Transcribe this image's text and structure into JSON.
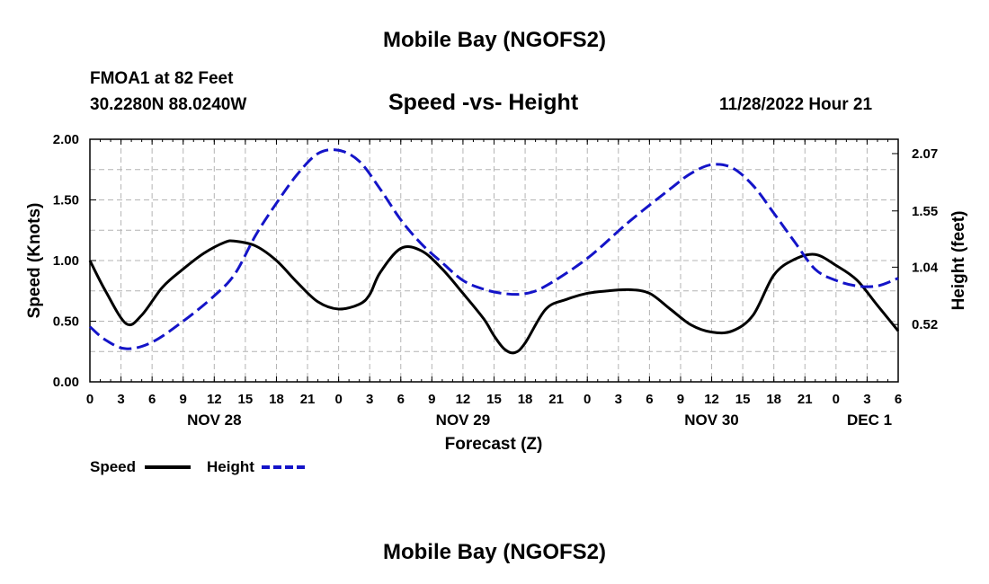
{
  "page_title": "Mobile Bay (NGOFS2)",
  "footer_title": "Mobile Bay (NGOFS2)",
  "station": {
    "name_line": "FMOA1 at 82 Feet",
    "coords_line": "30.2280N  88.0240W"
  },
  "forecast_time": "11/28/2022 Hour 21",
  "legend": {
    "speed_label": "Speed",
    "height_label": "Height"
  },
  "colors": {
    "speed": "#000000",
    "height": "#1414c8",
    "grid": "#b4b4b4"
  },
  "chart_data": {
    "type": "line",
    "title": "Speed -vs- Height",
    "xlabel": "Forecast (Z)",
    "ylabel_left": "Speed (Knots)",
    "ylabel_right": "Height (feet)",
    "xlim_hours": [
      0,
      78
    ],
    "ylim_left": [
      0,
      2.0
    ],
    "ylim_right": [
      0.0,
      2.2
    ],
    "left_ticks": [
      "0.00",
      "0.50",
      "1.00",
      "1.50",
      "2.00"
    ],
    "left_tick_values": [
      0,
      0.5,
      1.0,
      1.5,
      2.0
    ],
    "right_ticks": [
      "0.52",
      "1.04",
      "1.55",
      "2.07"
    ],
    "right_tick_values": [
      0.52,
      1.04,
      1.55,
      2.07
    ],
    "x_tick_labels": [
      "0",
      "3",
      "6",
      "9",
      "12",
      "15",
      "18",
      "21",
      "0",
      "3",
      "6",
      "9",
      "12",
      "15",
      "18",
      "21",
      "0",
      "3",
      "6",
      "9",
      "12",
      "15",
      "18",
      "21",
      "0",
      "3",
      "6"
    ],
    "date_labels": [
      {
        "label": "NOV 28",
        "hour": 12
      },
      {
        "label": "NOV 29",
        "hour": 36
      },
      {
        "label": "NOV 30",
        "hour": 60
      },
      {
        "label": "DEC 1",
        "hour": 78
      }
    ],
    "grid": true,
    "series": [
      {
        "name": "Speed",
        "axis": "left",
        "x": [
          0,
          1.5,
          3.5,
          5,
          7,
          9,
          11,
          13,
          14,
          16,
          18,
          20,
          22,
          24,
          26,
          27,
          28,
          30,
          32,
          34,
          36,
          38,
          39,
          40,
          41,
          42,
          44,
          46,
          48,
          50,
          52,
          54,
          56,
          58,
          60,
          62,
          64,
          66,
          68,
          70,
          72,
          74,
          76,
          78
        ],
        "values": [
          1.0,
          0.75,
          0.48,
          0.55,
          0.78,
          0.93,
          1.06,
          1.15,
          1.16,
          1.12,
          1.0,
          0.82,
          0.66,
          0.6,
          0.64,
          0.72,
          0.9,
          1.1,
          1.08,
          0.93,
          0.73,
          0.52,
          0.38,
          0.27,
          0.24,
          0.32,
          0.6,
          0.68,
          0.73,
          0.75,
          0.76,
          0.73,
          0.6,
          0.47,
          0.41,
          0.42,
          0.55,
          0.88,
          1.01,
          1.05,
          0.96,
          0.84,
          0.63,
          0.42
        ]
      },
      {
        "name": "Height",
        "axis": "right",
        "x": [
          0,
          1.5,
          3.5,
          6,
          9,
          12,
          14,
          16,
          18,
          20,
          22,
          24,
          26,
          28,
          30,
          32,
          34,
          36,
          38,
          40,
          42,
          44,
          48,
          52,
          56,
          58,
          60,
          62,
          64,
          66,
          68,
          70,
          72,
          74,
          76,
          78
        ],
        "values": [
          0.5,
          0.38,
          0.3,
          0.36,
          0.55,
          0.78,
          0.98,
          1.33,
          1.62,
          1.88,
          2.07,
          2.1,
          2.0,
          1.75,
          1.47,
          1.25,
          1.08,
          0.92,
          0.84,
          0.8,
          0.8,
          0.87,
          1.12,
          1.45,
          1.75,
          1.89,
          1.97,
          1.94,
          1.78,
          1.53,
          1.27,
          1.02,
          0.92,
          0.87,
          0.87,
          0.94
        ]
      }
    ]
  }
}
